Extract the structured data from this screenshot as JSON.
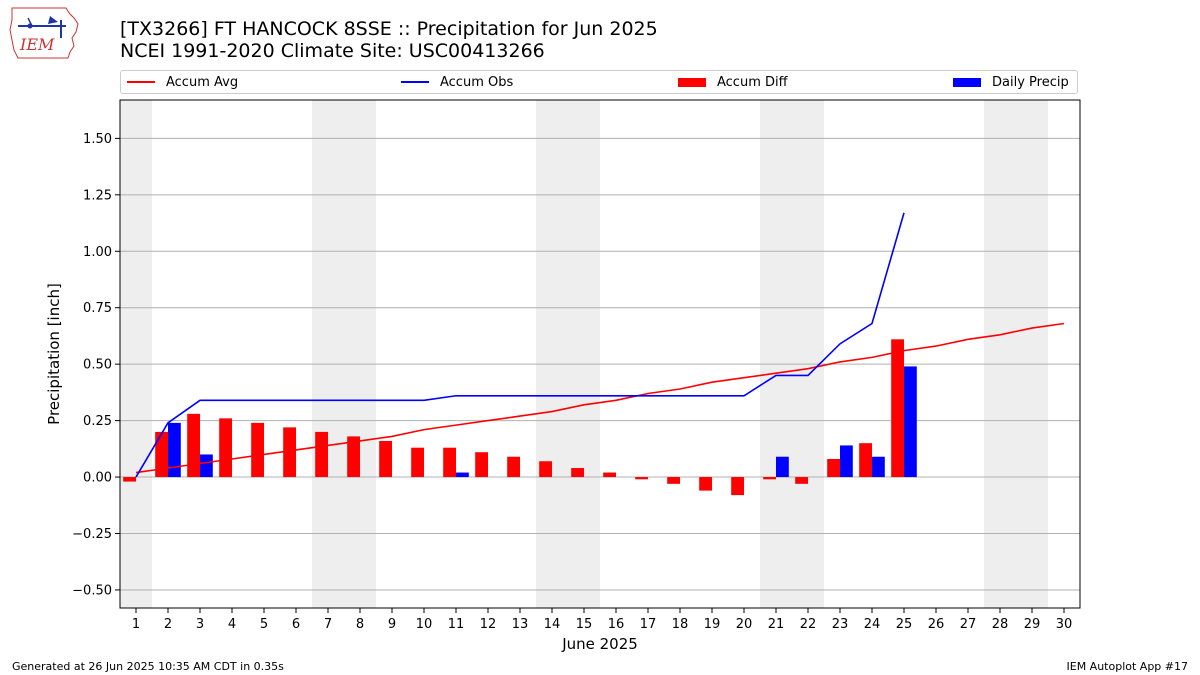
{
  "header": {
    "title_line1": "[TX3266] FT HANCOCK 8SSE :: Precipitation for Jun 2025",
    "title_line2": "NCEI 1991-2020 Climate Site: USC00413266",
    "logo_text": "IEM",
    "logo_icon": "iowa-state-outline-icon"
  },
  "footer": {
    "generated": "Generated at 26 Jun 2025 10:35 AM CDT in 0.35s",
    "app": "IEM Autoplot App #17"
  },
  "colors": {
    "accum_avg": "#ff0000",
    "accum_obs": "#0000ff",
    "accum_diff": "#ff0000",
    "daily_precip": "#0000ff",
    "weekend_shade": "#eeeeee",
    "grid": "#b0b0b0"
  },
  "chart_data": {
    "type": "bar",
    "title": "",
    "xlabel": "June 2025",
    "ylabel": "Precipitation [inch]",
    "xlim": [
      0.5,
      30.5
    ],
    "ylim": [
      -0.58,
      1.67
    ],
    "yticks": [
      -0.5,
      -0.25,
      0.0,
      0.25,
      0.5,
      0.75,
      1.0,
      1.25,
      1.5
    ],
    "ytick_labels": [
      "−0.50",
      "−0.25",
      "0.00",
      "0.25",
      "0.50",
      "0.75",
      "1.00",
      "1.25",
      "1.50"
    ],
    "grid": "horizontal",
    "legend_placement": "top",
    "x": [
      1,
      2,
      3,
      4,
      5,
      6,
      7,
      8,
      9,
      10,
      11,
      12,
      13,
      14,
      15,
      16,
      17,
      18,
      19,
      20,
      21,
      22,
      23,
      24,
      25,
      26,
      27,
      28,
      29,
      30
    ],
    "shaded_days": [
      [
        0.5,
        1.5
      ],
      [
        6.5,
        8.5
      ],
      [
        13.5,
        15.5
      ],
      [
        20.5,
        22.5
      ],
      [
        27.5,
        29.5
      ]
    ],
    "series": [
      {
        "name": "Accum Avg",
        "type": "line",
        "x": [
          1,
          2,
          3,
          4,
          5,
          6,
          7,
          8,
          9,
          10,
          11,
          12,
          13,
          14,
          15,
          16,
          17,
          18,
          19,
          20,
          21,
          22,
          23,
          24,
          25,
          26,
          27,
          28,
          29,
          30
        ],
        "values": [
          0.02,
          0.04,
          0.06,
          0.08,
          0.1,
          0.12,
          0.14,
          0.16,
          0.18,
          0.21,
          0.23,
          0.25,
          0.27,
          0.29,
          0.32,
          0.34,
          0.37,
          0.39,
          0.42,
          0.44,
          0.46,
          0.48,
          0.51,
          0.53,
          0.56,
          0.58,
          0.61,
          0.63,
          0.66,
          0.68
        ]
      },
      {
        "name": "Accum Obs",
        "type": "line",
        "x": [
          1,
          2,
          3,
          4,
          5,
          6,
          7,
          8,
          9,
          10,
          11,
          12,
          13,
          14,
          15,
          16,
          17,
          18,
          19,
          20,
          21,
          22,
          23,
          24,
          25
        ],
        "values": [
          0.0,
          0.24,
          0.34,
          0.34,
          0.34,
          0.34,
          0.34,
          0.34,
          0.34,
          0.34,
          0.36,
          0.36,
          0.36,
          0.36,
          0.36,
          0.36,
          0.36,
          0.36,
          0.36,
          0.36,
          0.45,
          0.45,
          0.59,
          0.68,
          1.17
        ]
      },
      {
        "name": "Accum Diff",
        "type": "bar",
        "x": [
          1,
          2,
          3,
          4,
          5,
          6,
          7,
          8,
          9,
          10,
          11,
          12,
          13,
          14,
          15,
          16,
          17,
          18,
          19,
          20,
          21,
          22,
          23,
          24,
          25
        ],
        "values": [
          -0.02,
          0.2,
          0.28,
          0.26,
          0.24,
          0.22,
          0.2,
          0.18,
          0.16,
          0.13,
          0.13,
          0.11,
          0.09,
          0.07,
          0.04,
          0.02,
          -0.01,
          -0.03,
          -0.06,
          -0.08,
          -0.01,
          -0.03,
          0.08,
          0.15,
          0.61
        ]
      },
      {
        "name": "Daily Precip",
        "type": "bar",
        "x": [
          1,
          2,
          3,
          4,
          5,
          6,
          7,
          8,
          9,
          10,
          11,
          12,
          13,
          14,
          15,
          16,
          17,
          18,
          19,
          20,
          21,
          22,
          23,
          24,
          25
        ],
        "values": [
          0.0,
          0.24,
          0.1,
          0.0,
          0.0,
          0.0,
          0.0,
          0.0,
          0.0,
          0.0,
          0.02,
          0.0,
          0.0,
          0.0,
          0.0,
          0.0,
          0.0,
          0.0,
          0.0,
          0.0,
          0.09,
          0.0,
          0.14,
          0.09,
          0.49
        ]
      }
    ]
  }
}
